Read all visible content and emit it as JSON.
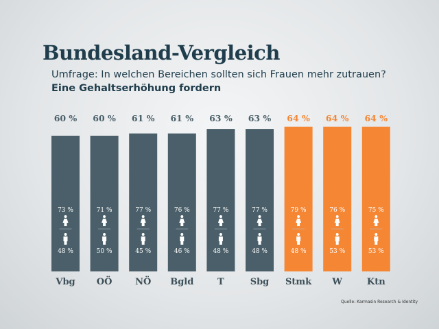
{
  "title": "Bundesland-Vergleich",
  "subtitle": "Umfrage: In welchen Bereichen sollten sich Frauen mehr zutrauen?",
  "subtitle2": "Eine Gehaltserhöhung fordern",
  "source": "Quelle: Karmasin Research & Identity",
  "colors": {
    "default": "#4a5f69",
    "highlight": "#f58634",
    "label_default": "#4a5f69"
  },
  "chart_data": {
    "type": "bar",
    "title": "Eine Gehaltserhöhung fordern",
    "categories": [
      "Vbg",
      "OÖ",
      "NÖ",
      "Bgld",
      "T",
      "Sbg",
      "Stmk",
      "W",
      "Ktn"
    ],
    "values": [
      60,
      60,
      61,
      61,
      63,
      63,
      64,
      64,
      64
    ],
    "value_labels": [
      "60 %",
      "60 %",
      "61 %",
      "61 %",
      "63 %",
      "63 %",
      "64 %",
      "64 %",
      "64 %"
    ],
    "highlighted": [
      false,
      false,
      false,
      false,
      false,
      false,
      true,
      true,
      true
    ],
    "series": [
      {
        "name": "female-icon",
        "values": [
          73,
          71,
          77,
          76,
          77,
          77,
          79,
          76,
          75
        ],
        "labels": [
          "73 %",
          "71 %",
          "77 %",
          "76 %",
          "77 %",
          "77 %",
          "79 %",
          "76 %",
          "75 %"
        ]
      },
      {
        "name": "male-icon",
        "values": [
          48,
          50,
          45,
          46,
          48,
          48,
          48,
          53,
          53
        ],
        "labels": [
          "48 %",
          "50 %",
          "45 %",
          "46 %",
          "48 %",
          "48 %",
          "48 %",
          "53 %",
          "53 %"
        ]
      }
    ],
    "grid": false,
    "legend": "none"
  }
}
